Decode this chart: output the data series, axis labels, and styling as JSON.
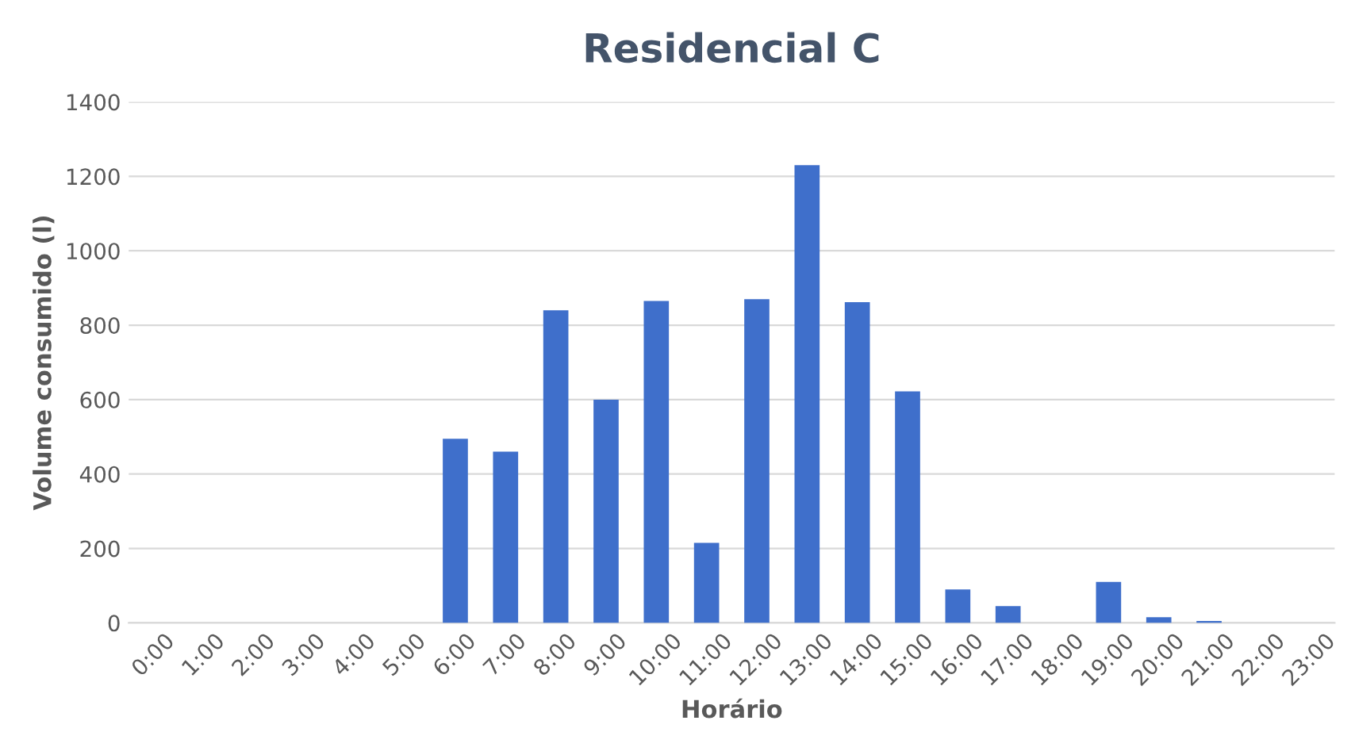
{
  "chart_data": {
    "type": "bar",
    "title": "Residencial C",
    "xlabel": "Horário",
    "ylabel": "Volume consumido (l)",
    "categories": [
      "0:00",
      "1:00",
      "2:00",
      "3:00",
      "4:00",
      "5:00",
      "6:00",
      "7:00",
      "8:00",
      "9:00",
      "10:00",
      "11:00",
      "12:00",
      "13:00",
      "14:00",
      "15:00",
      "16:00",
      "17:00",
      "18:00",
      "19:00",
      "20:00",
      "21:00",
      "22:00",
      "23:00"
    ],
    "values": [
      0,
      0,
      0,
      0,
      0,
      0,
      495,
      460,
      840,
      600,
      865,
      215,
      870,
      1230,
      862,
      622,
      90,
      45,
      0,
      110,
      15,
      5,
      0,
      0
    ],
    "color": "#3f6fcb",
    "ylim": [
      0,
      1400
    ],
    "yticks": [
      0,
      200,
      400,
      600,
      800,
      1000,
      1200,
      1400
    ],
    "grid": "y"
  }
}
